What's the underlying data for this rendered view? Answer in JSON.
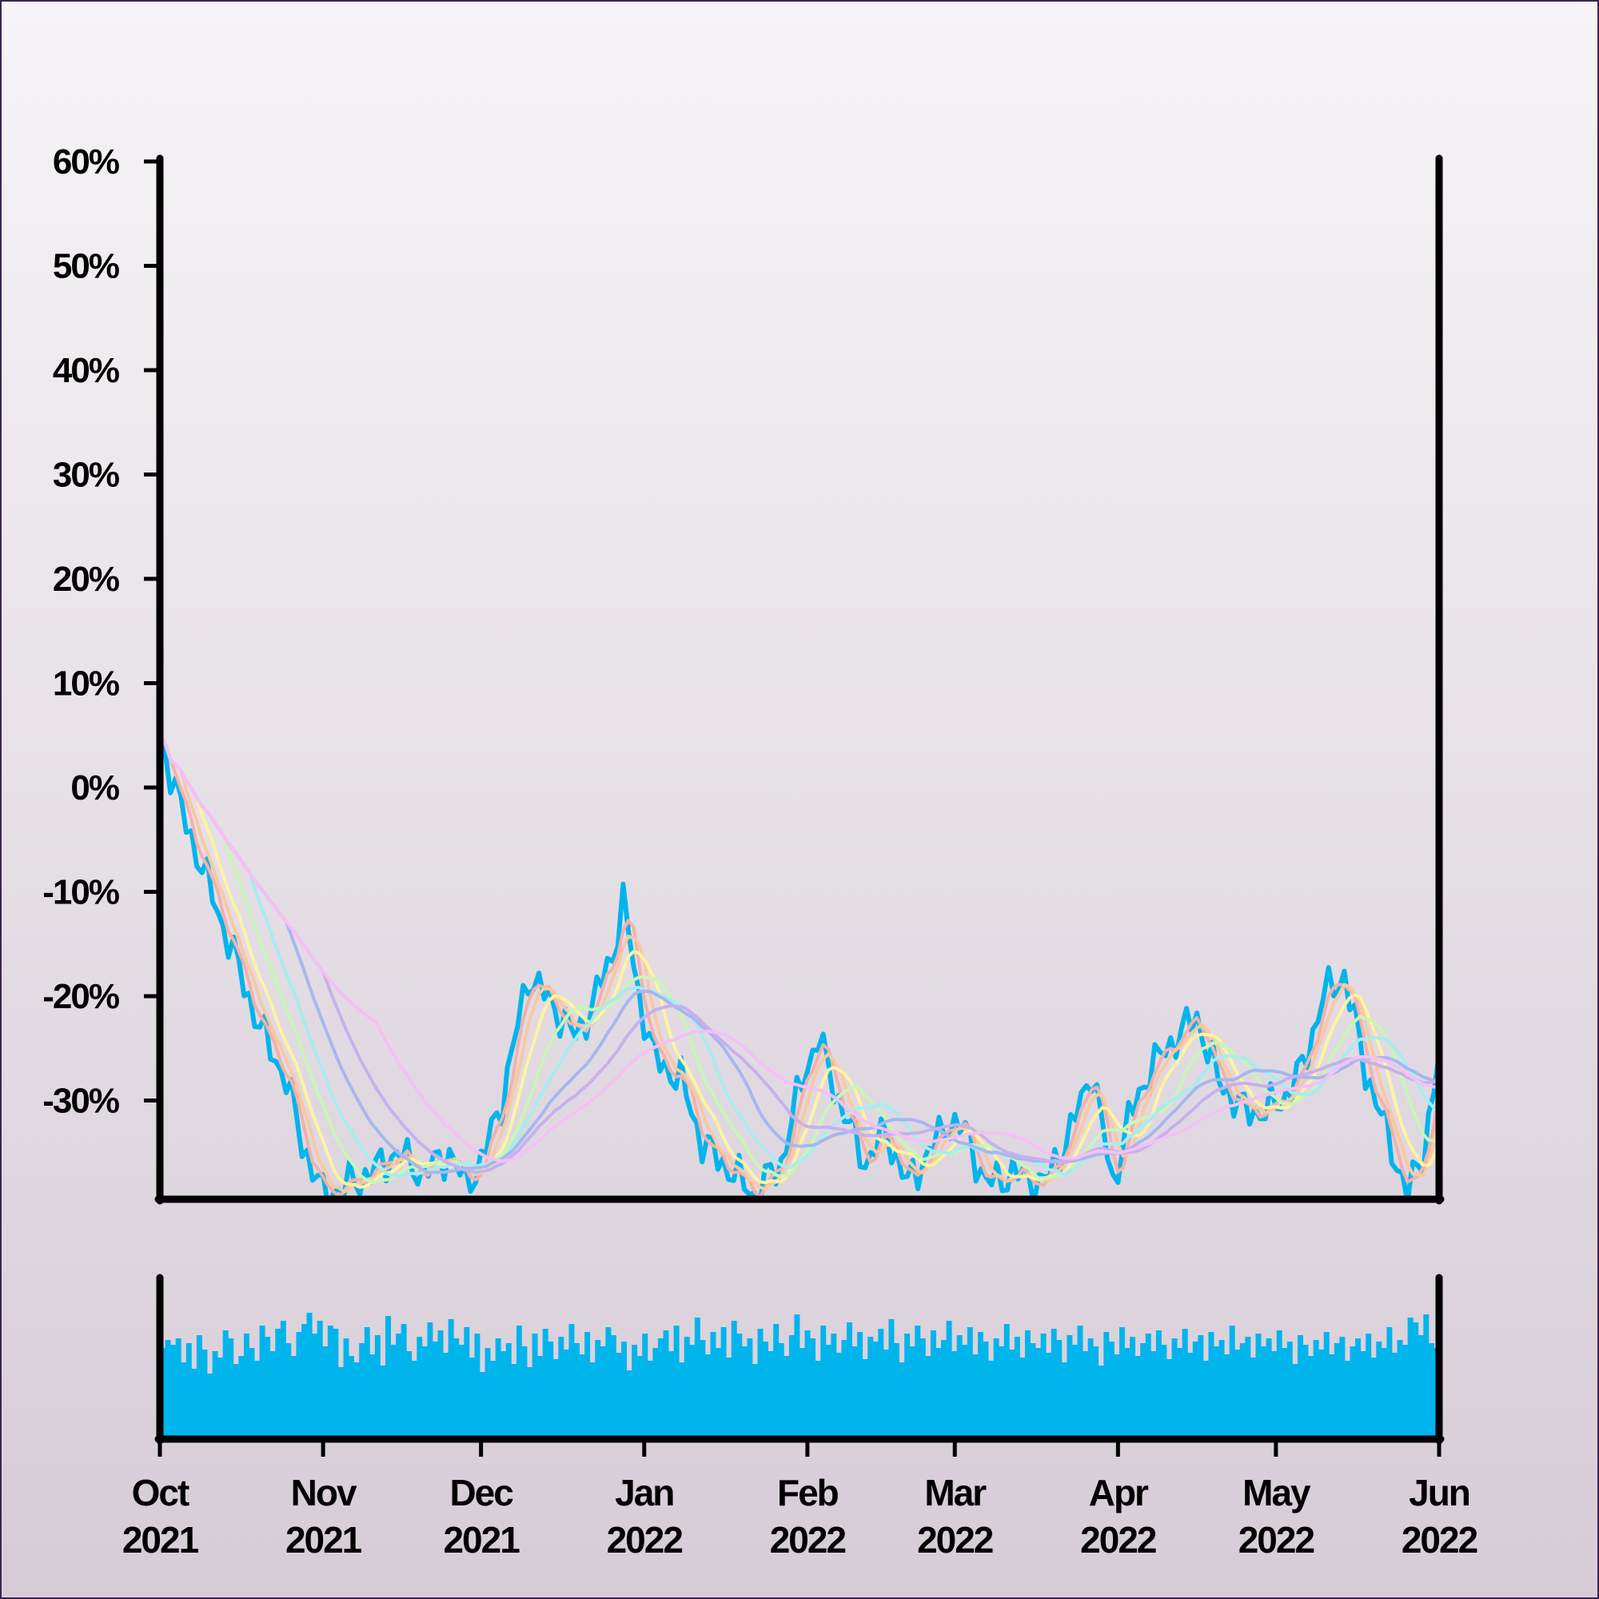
{
  "chart_data": {
    "type": "line",
    "title": "",
    "xlabel": "",
    "ylabel": "",
    "x_range": [
      "2021-10-01",
      "2022-06-01"
    ],
    "ylim": [
      -39.5,
      60
    ],
    "y_ticks": [
      "60%",
      "50%",
      "40%",
      "30%",
      "20%",
      "10%",
      "0%",
      "-10%",
      "-20%",
      "-30%"
    ],
    "x_ticks": [
      {
        "date": "2021-10-01",
        "month": "Oct",
        "year": "2021"
      },
      {
        "date": "2021-11-01",
        "month": "Nov",
        "year": "2021"
      },
      {
        "date": "2021-12-01",
        "month": "Dec",
        "year": "2021"
      },
      {
        "date": "2022-01-01",
        "month": "Jan",
        "year": "2022"
      },
      {
        "date": "2022-02-01",
        "month": "Feb",
        "year": "2022"
      },
      {
        "date": "2022-03-01",
        "month": "Mar",
        "year": "2022"
      },
      {
        "date": "2022-04-01",
        "month": "Apr",
        "year": "2022"
      },
      {
        "date": "2022-05-01",
        "month": "May",
        "year": "2022"
      },
      {
        "date": "2022-06-01",
        "month": "Jun",
        "year": "2022"
      }
    ],
    "grid": false,
    "legend": "none",
    "background_gradient": [
      "#f6f4f6",
      "#d6ccd7"
    ],
    "main_series": {
      "color": "#00b4ec",
      "points": [
        [
          "2021-10-01",
          5
        ],
        [
          "2021-10-05",
          -2
        ],
        [
          "2021-10-10",
          -9
        ],
        [
          "2021-10-15",
          -16
        ],
        [
          "2021-10-20",
          -23
        ],
        [
          "2021-10-25",
          -28
        ],
        [
          "2021-10-28",
          -34
        ],
        [
          "2021-11-01",
          -39
        ],
        [
          "2021-11-06",
          -38
        ],
        [
          "2021-11-10",
          -37
        ],
        [
          "2021-11-15",
          -35
        ],
        [
          "2021-11-20",
          -37
        ],
        [
          "2021-11-25",
          -35
        ],
        [
          "2021-11-28",
          -38
        ],
        [
          "2021-12-01",
          -36
        ],
        [
          "2021-12-05",
          -30
        ],
        [
          "2021-12-10",
          -18
        ],
        [
          "2021-12-15",
          -21
        ],
        [
          "2021-12-19",
          -24
        ],
        [
          "2021-12-22",
          -21
        ],
        [
          "2021-12-26",
          -16
        ],
        [
          "2021-12-28",
          -11
        ],
        [
          "2021-12-31",
          -20
        ],
        [
          "2022-01-03",
          -26
        ],
        [
          "2022-01-08",
          -28
        ],
        [
          "2022-01-12",
          -34
        ],
        [
          "2022-01-18",
          -37
        ],
        [
          "2022-01-22",
          -39
        ],
        [
          "2022-01-27",
          -36
        ],
        [
          "2022-01-31",
          -28
        ],
        [
          "2022-02-03",
          -24
        ],
        [
          "2022-02-07",
          -30
        ],
        [
          "2022-02-12",
          -36
        ],
        [
          "2022-02-16",
          -33
        ],
        [
          "2022-02-20",
          -38
        ],
        [
          "2022-02-24",
          -35
        ],
        [
          "2022-02-28",
          -32
        ],
        [
          "2022-03-03",
          -33
        ],
        [
          "2022-03-07",
          -38
        ],
        [
          "2022-03-12",
          -37
        ],
        [
          "2022-03-18",
          -38
        ],
        [
          "2022-03-23",
          -33
        ],
        [
          "2022-03-27",
          -27
        ],
        [
          "2022-03-31",
          -38
        ],
        [
          "2022-04-03",
          -32
        ],
        [
          "2022-04-07",
          -27
        ],
        [
          "2022-04-12",
          -24
        ],
        [
          "2022-04-16",
          -22
        ],
        [
          "2022-04-20",
          -28
        ],
        [
          "2022-04-25",
          -31
        ],
        [
          "2022-04-29",
          -31
        ],
        [
          "2022-05-02",
          -30
        ],
        [
          "2022-05-06",
          -27
        ],
        [
          "2022-05-10",
          -20
        ],
        [
          "2022-05-14",
          -18
        ],
        [
          "2022-05-18",
          -27
        ],
        [
          "2022-05-22",
          -33
        ],
        [
          "2022-05-26",
          -39
        ],
        [
          "2022-05-29",
          -35
        ],
        [
          "2022-06-01",
          -26
        ]
      ]
    },
    "moving_average_colors": [
      "#f6b0a8",
      "#f8c9a1",
      "#fdf3a0",
      "#c8f5b8",
      "#a8ecef",
      "#a6b7f0",
      "#c7b0ef",
      "#f5c0f4"
    ],
    "volume_series": {
      "color": "#00b4ec",
      "values": [
        57,
        62,
        59,
        63,
        48,
        60,
        44,
        65,
        56,
        41,
        55,
        51,
        68,
        63,
        47,
        52,
        66,
        57,
        49,
        71,
        64,
        55,
        69,
        74,
        60,
        52,
        67,
        72,
        79,
        66,
        74,
        58,
        71,
        69,
        45,
        63,
        52,
        48,
        60,
        70,
        53,
        65,
        46,
        77,
        59,
        66,
        72,
        55,
        49,
        64,
        58,
        73,
        61,
        68,
        54,
        75,
        63,
        59,
        70,
        51,
        66,
        42,
        57,
        49,
        63,
        55,
        60,
        47,
        71,
        58,
        45,
        66,
        52,
        69,
        61,
        50,
        64,
        56,
        72,
        60,
        53,
        67,
        48,
        62,
        58,
        70,
        65,
        54,
        61,
        43,
        59,
        52,
        66,
        49,
        57,
        63,
        68,
        55,
        71,
        48,
        64,
        59,
        76,
        62,
        53,
        67,
        57,
        70,
        51,
        74,
        66,
        58,
        63,
        47,
        69,
        61,
        55,
        72,
        60,
        52,
        65,
        78,
        57,
        68,
        63,
        49,
        71,
        59,
        66,
        54,
        62,
        73,
        58,
        67,
        50,
        64,
        61,
        69,
        56,
        75,
        60,
        48,
        66,
        58,
        71,
        63,
        52,
        68,
        57,
        62,
        74,
        55,
        65,
        59,
        70,
        53,
        67,
        61,
        49,
        63,
        58,
        72,
        56,
        64,
        51,
        68,
        60,
        57,
        66,
        54,
        69,
        62,
        48,
        65,
        59,
        71,
        55,
        63,
        58,
        46,
        67,
        61,
        53,
        70,
        57,
        64,
        52,
        60,
        66,
        55,
        68,
        59,
        50,
        63,
        57,
        69,
        54,
        61,
        65,
        49,
        67,
        58,
        62,
        53,
        71,
        56,
        60,
        64,
        51,
        66,
        58,
        63,
        55,
        68,
        57,
        61,
        47,
        65,
        59,
        52,
        62,
        56,
        67,
        53,
        60,
        64,
        49,
        58,
        63,
        55,
        66,
        51,
        61,
        57,
        70,
        54,
        62,
        59,
        76,
        73,
        65,
        78,
        60,
        57
      ]
    }
  }
}
